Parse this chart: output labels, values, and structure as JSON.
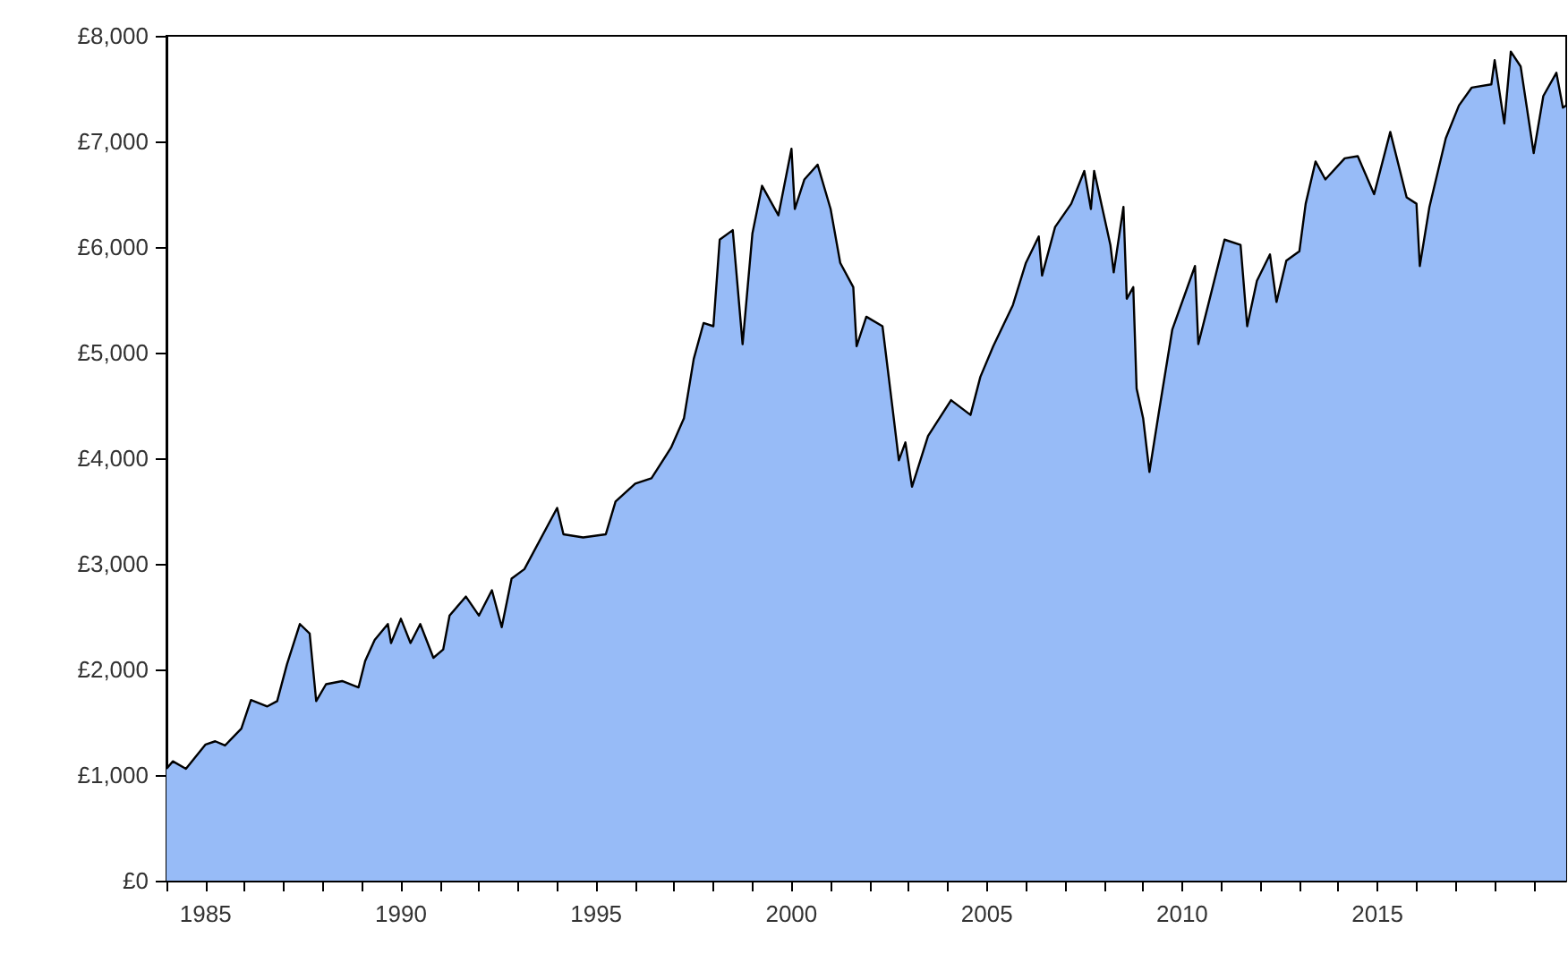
{
  "chart_data": {
    "type": "area",
    "x": [
      "1984-01",
      "1984-03",
      "1984-07",
      "1985-01",
      "1985-04",
      "1985-07",
      "1985-12",
      "1986-03",
      "1986-08",
      "1986-11",
      "1987-02",
      "1987-06",
      "1987-09",
      "1987-11",
      "1988-02",
      "1988-07",
      "1988-12",
      "1989-02",
      "1989-05",
      "1989-09",
      "1989-10",
      "1990-01",
      "1990-04",
      "1990-07",
      "1990-11",
      "1991-02",
      "1991-04",
      "1991-09",
      "1992-01",
      "1992-05",
      "1992-08",
      "1992-11",
      "1993-03",
      "1994-01",
      "1994-03",
      "1994-09",
      "1995-04",
      "1995-07",
      "1996-01",
      "1996-06",
      "1996-12",
      "1997-04",
      "1997-07",
      "1997-10",
      "1998-01",
      "1998-03",
      "1998-07",
      "1998-10",
      "1999-01",
      "1999-04",
      "1999-09",
      "2000-01",
      "2000-02",
      "2000-05",
      "2000-09",
      "2001-01",
      "2001-04",
      "2001-08",
      "2001-09",
      "2001-12",
      "2002-05",
      "2002-08",
      "2002-10",
      "2002-12",
      "2003-02",
      "2003-07",
      "2004-02",
      "2004-08",
      "2004-11",
      "2005-03",
      "2005-09",
      "2006-01",
      "2006-05",
      "2006-06",
      "2006-10",
      "2007-03",
      "2007-07",
      "2007-09",
      "2007-10",
      "2008-03",
      "2008-04",
      "2008-07",
      "2008-08",
      "2008-10",
      "2008-11",
      "2009-01",
      "2009-03",
      "2009-06",
      "2009-10",
      "2010-05",
      "2010-06",
      "2010-09",
      "2011-02",
      "2011-07",
      "2011-09",
      "2011-12",
      "2012-04",
      "2012-06",
      "2012-09",
      "2013-01",
      "2013-03",
      "2013-06",
      "2013-09",
      "2014-03",
      "2014-07",
      "2014-12",
      "2015-05",
      "2015-10",
      "2016-01",
      "2016-02",
      "2016-05",
      "2016-10",
      "2017-02",
      "2017-06",
      "2017-12",
      "2018-01",
      "2018-04",
      "2018-06",
      "2018-09",
      "2019-01",
      "2019-04",
      "2019-08",
      "2019-10",
      "2019-11"
    ],
    "series": [
      {
        "color": "#97bbf7",
        "values": [
          1060,
          1130,
          1060,
          1290,
          1320,
          1280,
          1440,
          1710,
          1650,
          1700,
          2050,
          2430,
          2340,
          1700,
          1860,
          1890,
          1830,
          2080,
          2280,
          2430,
          2250,
          2480,
          2250,
          2430,
          2110,
          2190,
          2510,
          2690,
          2510,
          2750,
          2400,
          2860,
          2950,
          3530,
          3280,
          3250,
          3280,
          3590,
          3760,
          3810,
          4100,
          4380,
          4940,
          5280,
          5250,
          6070,
          6160,
          5080,
          6130,
          6580,
          6300,
          6930,
          6360,
          6640,
          6780,
          6360,
          5850,
          5620,
          5060,
          5340,
          5250,
          4490,
          3980,
          4150,
          3730,
          4210,
          4550,
          4410,
          4770,
          5060,
          5450,
          5850,
          6100,
          5730,
          6190,
          6410,
          6720,
          6360,
          6720,
          6020,
          5760,
          6380,
          5510,
          5620,
          4660,
          4380,
          3870,
          4460,
          5220,
          5820,
          5080,
          5450,
          6070,
          6020,
          5250,
          5680,
          5930,
          5480,
          5870,
          5960,
          6410,
          6810,
          6640,
          6840,
          6860,
          6500,
          7090,
          6470,
          6410,
          5820,
          6380,
          7030,
          7340,
          7510,
          7540,
          7770,
          7170,
          7850,
          7710,
          6890,
          7430,
          7650,
          7320,
          7340
        ]
      }
    ],
    "xlim": [
      "1984-01",
      "2019-11"
    ],
    "xticks": [
      {
        "value": "1984",
        "label": null
      },
      "1985",
      {
        "value": "1986",
        "label": null
      },
      {
        "value": "1987",
        "label": null
      },
      {
        "value": "1988",
        "label": null
      },
      {
        "value": "1989",
        "label": null
      },
      "1990",
      {
        "value": "1991",
        "label": null
      },
      {
        "value": "1992",
        "label": null
      },
      {
        "value": "1993",
        "label": null
      },
      {
        "value": "1994",
        "label": null
      },
      "1995",
      {
        "value": "1996",
        "label": null
      },
      {
        "value": "1997",
        "label": null
      },
      {
        "value": "1998",
        "label": null
      },
      {
        "value": "1999",
        "label": null
      },
      "2000",
      {
        "value": "2001",
        "label": null
      },
      {
        "value": "2002",
        "label": null
      },
      {
        "value": "2003",
        "label": null
      },
      {
        "value": "2004",
        "label": null
      },
      "2005",
      {
        "value": "2006",
        "label": null
      },
      {
        "value": "2007",
        "label": null
      },
      {
        "value": "2008",
        "label": null
      },
      {
        "value": "2009",
        "label": null
      },
      "2010",
      {
        "value": "2011",
        "label": null
      },
      {
        "value": "2012",
        "label": null
      },
      {
        "value": "2013",
        "label": null
      },
      {
        "value": "2014",
        "label": null
      },
      "2015",
      {
        "value": "2016",
        "label": null
      },
      {
        "value": "2017",
        "label": null
      },
      {
        "value": "2018",
        "label": null
      },
      {
        "value": "2019",
        "label": null
      }
    ],
    "ylim": [
      0,
      8000
    ],
    "yticks": [
      {
        "value": 0,
        "label": "£0"
      },
      {
        "value": 1000,
        "label": "£1,000"
      },
      {
        "value": 2000,
        "label": "£2,000"
      },
      {
        "value": 3000,
        "label": "£3,000"
      },
      {
        "value": 4000,
        "label": "£4,000"
      },
      {
        "value": 5000,
        "label": "£5,000"
      },
      {
        "value": 6000,
        "label": "£6,000"
      },
      {
        "value": 7000,
        "label": "£7,000"
      },
      {
        "value": 8000,
        "label": "£8,000"
      }
    ],
    "marker": "none",
    "line_style": "solid"
  }
}
